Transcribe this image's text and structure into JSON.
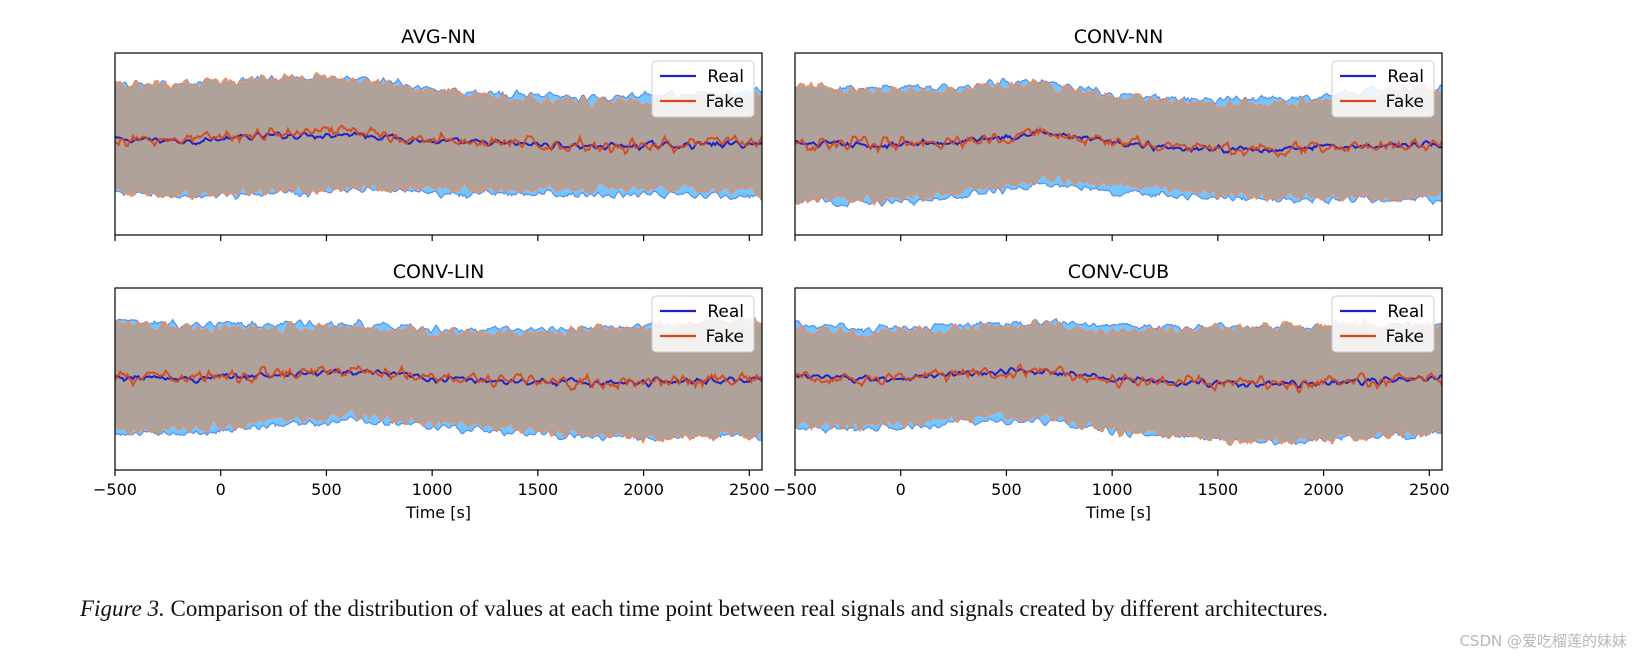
{
  "chart_data": [
    {
      "type": "area",
      "title": "AVG-NN",
      "x_range": [
        -500,
        2560
      ],
      "x_ticks": [
        -500,
        0,
        500,
        1000,
        1500,
        2000,
        2500
      ],
      "xlabel": "",
      "show_tick_labels": false,
      "legend": {
        "position": "top-right",
        "entries": [
          "Real",
          "Fake"
        ]
      },
      "series": [
        {
          "name": "Real",
          "mean": [
            0.05,
            0.04,
            0.1,
            0.12,
            0.02,
            0.0,
            -0.03,
            -0.01,
            0.0
          ]
        },
        {
          "name": "Fake",
          "mean": [
            0.06,
            0.06,
            0.12,
            0.14,
            0.04,
            0.0,
            -0.02,
            0.0,
            0.02
          ]
        }
      ]
    },
    {
      "type": "area",
      "title": "CONV-NN",
      "x_range": [
        -500,
        2560
      ],
      "x_ticks": [
        -500,
        0,
        500,
        1000,
        1500,
        2000,
        2500
      ],
      "xlabel": "",
      "show_tick_labels": false,
      "legend": {
        "position": "top-right",
        "entries": [
          "Real",
          "Fake"
        ]
      },
      "series": [
        {
          "name": "Real",
          "mean": [
            0.0,
            -0.02,
            0.02,
            0.14,
            0.0,
            -0.05,
            -0.07,
            -0.02,
            0.0
          ]
        },
        {
          "name": "Fake",
          "mean": [
            0.0,
            -0.01,
            0.03,
            0.15,
            0.02,
            -0.05,
            -0.08,
            -0.03,
            0.02
          ]
        }
      ]
    },
    {
      "type": "area",
      "title": "CONV-LIN",
      "x_range": [
        -500,
        2560
      ],
      "x_ticks": [
        -500,
        0,
        500,
        1000,
        1500,
        2000,
        2500
      ],
      "xlabel": "Time [s]",
      "show_tick_labels": true,
      "legend": {
        "position": "top-right",
        "entries": [
          "Real",
          "Fake"
        ]
      },
      "series": [
        {
          "name": "Real",
          "mean": [
            0.02,
            0.0,
            0.05,
            0.08,
            0.0,
            -0.02,
            -0.05,
            -0.02,
            0.0
          ]
        },
        {
          "name": "Fake",
          "mean": [
            0.03,
            0.01,
            0.06,
            0.1,
            0.01,
            -0.02,
            -0.05,
            -0.02,
            0.02
          ]
        }
      ]
    },
    {
      "type": "area",
      "title": "CONV-CUB",
      "x_range": [
        -500,
        2560
      ],
      "x_ticks": [
        -500,
        0,
        500,
        1000,
        1500,
        2000,
        2500
      ],
      "xlabel": "Time [s]",
      "show_tick_labels": true,
      "legend": {
        "position": "top-right",
        "entries": [
          "Real",
          "Fake"
        ]
      },
      "series": [
        {
          "name": "Real",
          "mean": [
            0.02,
            0.0,
            0.05,
            0.1,
            0.0,
            -0.04,
            -0.06,
            -0.03,
            0.0
          ]
        },
        {
          "name": "Fake",
          "mean": [
            0.02,
            0.0,
            0.06,
            0.1,
            -0.02,
            -0.05,
            -0.06,
            -0.03,
            0.02
          ]
        }
      ]
    }
  ],
  "caption": {
    "label": "Figure 3.",
    "text": " Comparison of the distribution of values at each time point between real signals and signals created by different architectures."
  },
  "watermark": "CSDN @爱吃榴莲的妹妹",
  "colors": {
    "real_line": "#1f22c8",
    "real_fill": "#6ec3ff",
    "real_edge": "#5a8fe8",
    "fake_line": "#d5481a",
    "fake_fill": "#b0a096",
    "fake_edge": "#ee8c62"
  }
}
